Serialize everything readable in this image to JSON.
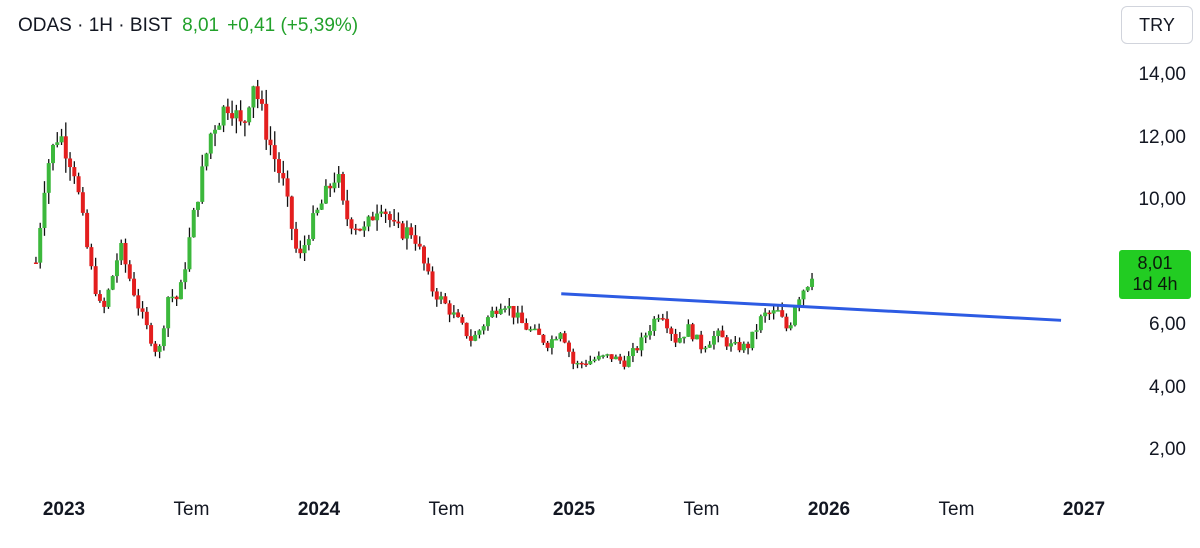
{
  "header": {
    "symbol": "ODAS · 1H · BIST",
    "last": "8,01",
    "change": "+0,41 (+5,39%)"
  },
  "currency_button": "TRY",
  "price_tag": {
    "price": "8,01",
    "countdown": "1d 4h",
    "color": "#22cc22"
  },
  "colors": {
    "up": "#3cb83c",
    "down": "#e31e1e",
    "trendline": "#2d5be3"
  },
  "chart_data": {
    "type": "candlestick",
    "title": "",
    "xlabel": "",
    "ylabel": "",
    "ylim": [
      1.0,
      14.9
    ],
    "y_ticks": [
      {
        "value": 14,
        "label": "14,00"
      },
      {
        "value": 12,
        "label": "12,00"
      },
      {
        "value": 10,
        "label": "10,00"
      },
      {
        "value": 6,
        "label": "6,00"
      },
      {
        "value": 4,
        "label": "4,00"
      },
      {
        "value": 2,
        "label": "2,00"
      }
    ],
    "x_ticks": [
      {
        "t": 2023.0,
        "label": "2023",
        "bold": true
      },
      {
        "t": 2023.5,
        "label": "Tem",
        "bold": false
      },
      {
        "t": 2024.0,
        "label": "2024",
        "bold": true
      },
      {
        "t": 2024.5,
        "label": "Tem",
        "bold": false
      },
      {
        "t": 2025.0,
        "label": "2025",
        "bold": true
      },
      {
        "t": 2025.5,
        "label": "Tem",
        "bold": false
      },
      {
        "t": 2026.0,
        "label": "2026",
        "bold": true
      },
      {
        "t": 2026.5,
        "label": "Tem",
        "bold": false
      },
      {
        "t": 2027.0,
        "label": "2027",
        "bold": true
      }
    ],
    "xlim": [
      2022.88,
      2027.06
    ],
    "price_path": [
      [
        2022.89,
        8.0
      ],
      [
        2022.93,
        11.0
      ],
      [
        2022.98,
        12.2
      ],
      [
        2023.04,
        11.0
      ],
      [
        2023.1,
        8.0
      ],
      [
        2023.15,
        6.3
      ],
      [
        2023.22,
        8.5
      ],
      [
        2023.3,
        6.4
      ],
      [
        2023.37,
        5.0
      ],
      [
        2023.41,
        7.0
      ],
      [
        2023.45,
        6.8
      ],
      [
        2023.52,
        10.0
      ],
      [
        2023.58,
        12.3
      ],
      [
        2023.65,
        13.2
      ],
      [
        2023.7,
        12.2
      ],
      [
        2023.74,
        13.9
      ],
      [
        2023.8,
        12.0
      ],
      [
        2023.86,
        10.5
      ],
      [
        2023.92,
        8.0
      ],
      [
        2023.96,
        9.0
      ],
      [
        2024.07,
        10.9
      ],
      [
        2024.1,
        9.5
      ],
      [
        2024.18,
        9.0
      ],
      [
        2024.24,
        10.0
      ],
      [
        2024.3,
        9.0
      ],
      [
        2024.37,
        9.0
      ],
      [
        2024.44,
        7.2
      ],
      [
        2024.52,
        6.4
      ],
      [
        2024.6,
        5.5
      ],
      [
        2024.66,
        6.2
      ],
      [
        2024.72,
        6.8
      ],
      [
        2024.8,
        6.0
      ],
      [
        2024.9,
        5.4
      ],
      [
        2024.95,
        5.9
      ],
      [
        2025.0,
        4.7
      ],
      [
        2025.08,
        4.9
      ],
      [
        2025.14,
        5.0
      ],
      [
        2025.2,
        4.8
      ],
      [
        2025.26,
        5.4
      ],
      [
        2025.31,
        6.1
      ],
      [
        2025.34,
        6.5
      ],
      [
        2025.4,
        5.5
      ],
      [
        2025.45,
        5.9
      ],
      [
        2025.5,
        5.3
      ],
      [
        2025.56,
        5.7
      ],
      [
        2025.62,
        5.3
      ],
      [
        2025.68,
        5.3
      ],
      [
        2025.74,
        6.3
      ],
      [
        2025.8,
        6.4
      ],
      [
        2025.84,
        5.8
      ],
      [
        2025.87,
        6.8
      ],
      [
        2025.91,
        7.3
      ],
      [
        2025.93,
        7.5
      ],
      [
        2025.94,
        8.01
      ]
    ],
    "trendline": {
      "start": [
        2024.95,
        7.0
      ],
      "end": [
        2026.91,
        6.15
      ]
    }
  }
}
